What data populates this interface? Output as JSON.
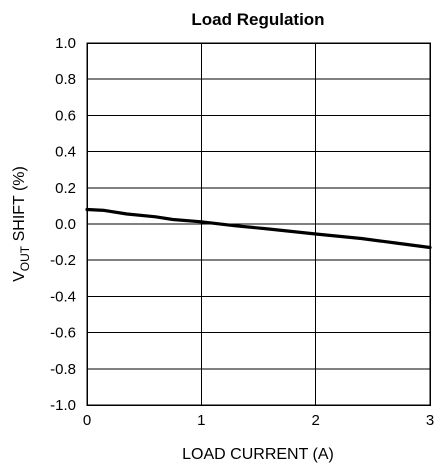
{
  "chart_data": {
    "type": "line",
    "title": "Load Regulation",
    "xlabel": "LOAD CURRENT (A)",
    "ylabel": {
      "main": "V",
      "subscript": "OUT",
      "rest": " SHIFT (%)"
    },
    "xlim": [
      0,
      3
    ],
    "ylim": [
      -1.0,
      1.0
    ],
    "x_ticks": [
      0,
      1,
      2,
      3
    ],
    "x_tick_labels": [
      "0",
      "1",
      "2",
      "3"
    ],
    "y_ticks": [
      1.0,
      0.8,
      0.6,
      0.4,
      0.2,
      0.0,
      -0.2,
      -0.4,
      -0.6,
      -0.8,
      -1.0
    ],
    "y_tick_labels": [
      "1.0",
      "0.8",
      "0.6",
      "0.4",
      "0.2",
      "0.0",
      "-0.2",
      "-0.4",
      "-0.6",
      "-0.8",
      "-1.0"
    ],
    "grid": true,
    "series": [
      {
        "x": [
          0,
          0.15,
          0.35,
          0.6,
          0.75,
          1.0,
          1.3,
          1.6,
          2.0,
          2.4,
          2.7,
          3.0
        ],
        "values": [
          0.08,
          0.075,
          0.055,
          0.04,
          0.025,
          0.012,
          -0.01,
          -0.028,
          -0.055,
          -0.08,
          -0.105,
          -0.13
        ]
      }
    ]
  }
}
